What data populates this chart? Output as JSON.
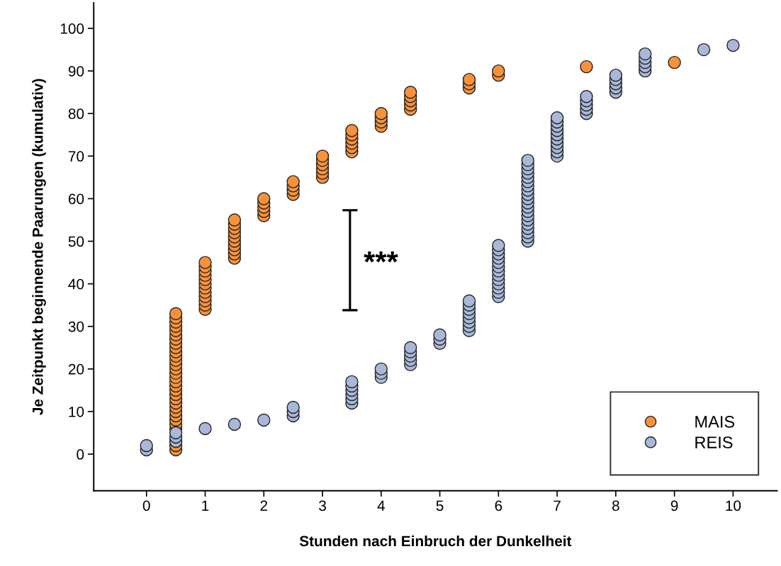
{
  "chart_data": {
    "type": "scatter",
    "xlabel": "Stunden nach Einbruch der Dunkelheit",
    "ylabel": "Je Zeitpunkt beginnende Paarungen (kumulativ)",
    "xlim": [
      -0.9,
      10.75
    ],
    "ylim": [
      -8.6,
      106
    ],
    "xticks": [
      0,
      1,
      2,
      3,
      4,
      5,
      6,
      7,
      8,
      9,
      10
    ],
    "yticks": [
      0,
      10,
      20,
      30,
      40,
      50,
      60,
      70,
      80,
      90,
      100
    ],
    "grid": false,
    "legend": "bottom right",
    "marker": "circle",
    "annotations": [
      "***"
    ],
    "series": [
      {
        "name": "MAIS",
        "color": "#f7923a",
        "x": [
          0.5,
          0.5,
          0.5,
          0.5,
          0.5,
          0.5,
          0.5,
          0.5,
          0.5,
          0.5,
          0.5,
          0.5,
          0.5,
          0.5,
          0.5,
          0.5,
          0.5,
          0.5,
          0.5,
          0.5,
          0.5,
          0.5,
          0.5,
          0.5,
          0.5,
          0.5,
          0.5,
          0.5,
          0.5,
          0.5,
          0.5,
          1,
          1,
          1,
          1,
          1,
          1,
          1,
          1,
          1,
          1,
          1,
          1,
          1.5,
          1.5,
          1.5,
          1.5,
          1.5,
          1.5,
          1.5,
          1.5,
          1.5,
          1.5,
          2,
          2,
          2,
          2,
          2,
          2.5,
          2.5,
          2.5,
          2.5,
          3,
          3,
          3,
          3,
          3,
          3,
          3.5,
          3.5,
          3.5,
          3.5,
          3.5,
          3.5,
          4,
          4,
          4,
          4,
          4.5,
          4.5,
          4.5,
          4.5,
          4.5,
          5.5,
          5.5,
          5.5,
          6,
          6,
          7.5,
          9
        ],
        "values": [
          1,
          2,
          3,
          6,
          7,
          8,
          9,
          10,
          11,
          12,
          13,
          14,
          15,
          16,
          17,
          18,
          19,
          20,
          21,
          22,
          23,
          24,
          25,
          26,
          27,
          28,
          29,
          30,
          31,
          32,
          33,
          34,
          35,
          36,
          37,
          38,
          39,
          40,
          41,
          42,
          43,
          44,
          45,
          46,
          47,
          48,
          49,
          50,
          51,
          52,
          53,
          54,
          55,
          56,
          57,
          58,
          59,
          60,
          61,
          62,
          63,
          64,
          65,
          66,
          67,
          68,
          69,
          70,
          71,
          72,
          73,
          74,
          75,
          76,
          77,
          78,
          79,
          80,
          81,
          82,
          83,
          84,
          85,
          86,
          87,
          88,
          89,
          90,
          91,
          92
        ]
      },
      {
        "name": "REIS",
        "color": "#a9b8d9",
        "x": [
          0,
          0,
          0.5,
          0.5,
          0.5,
          1,
          1.5,
          2,
          2.5,
          2.5,
          2.5,
          3.5,
          3.5,
          3.5,
          3.5,
          3.5,
          3.5,
          4,
          4,
          4,
          4.5,
          4.5,
          4.5,
          4.5,
          4.5,
          5,
          5,
          5,
          5.5,
          5.5,
          5.5,
          5.5,
          5.5,
          5.5,
          5.5,
          5.5,
          6,
          6,
          6,
          6,
          6,
          6,
          6,
          6,
          6,
          6,
          6,
          6,
          6,
          6.5,
          6.5,
          6.5,
          6.5,
          6.5,
          6.5,
          6.5,
          6.5,
          6.5,
          6.5,
          6.5,
          6.5,
          6.5,
          6.5,
          6.5,
          6.5,
          6.5,
          6.5,
          6.5,
          6.5,
          7,
          7,
          7,
          7,
          7,
          7,
          7,
          7,
          7,
          7,
          7.5,
          7.5,
          7.5,
          7.5,
          7.5,
          8,
          8,
          8,
          8,
          8,
          8.5,
          8.5,
          8.5,
          8.5,
          8.5,
          9.5,
          10
        ],
        "values": [
          1,
          2,
          3,
          4,
          5,
          6,
          7,
          8,
          9,
          10,
          11,
          12,
          13,
          14,
          15,
          16,
          17,
          18,
          19,
          20,
          21,
          22,
          23,
          24,
          25,
          26,
          27,
          28,
          29,
          30,
          31,
          32,
          33,
          34,
          35,
          36,
          37,
          38,
          39,
          40,
          41,
          42,
          43,
          44,
          45,
          46,
          47,
          48,
          49,
          50,
          51,
          52,
          53,
          54,
          55,
          56,
          57,
          58,
          59,
          60,
          61,
          62,
          63,
          64,
          65,
          66,
          67,
          68,
          69,
          70,
          71,
          72,
          73,
          74,
          75,
          76,
          77,
          78,
          79,
          80,
          81,
          82,
          83,
          84,
          85,
          86,
          87,
          88,
          89,
          90,
          91,
          92,
          93,
          94,
          95,
          96
        ]
      }
    ]
  }
}
